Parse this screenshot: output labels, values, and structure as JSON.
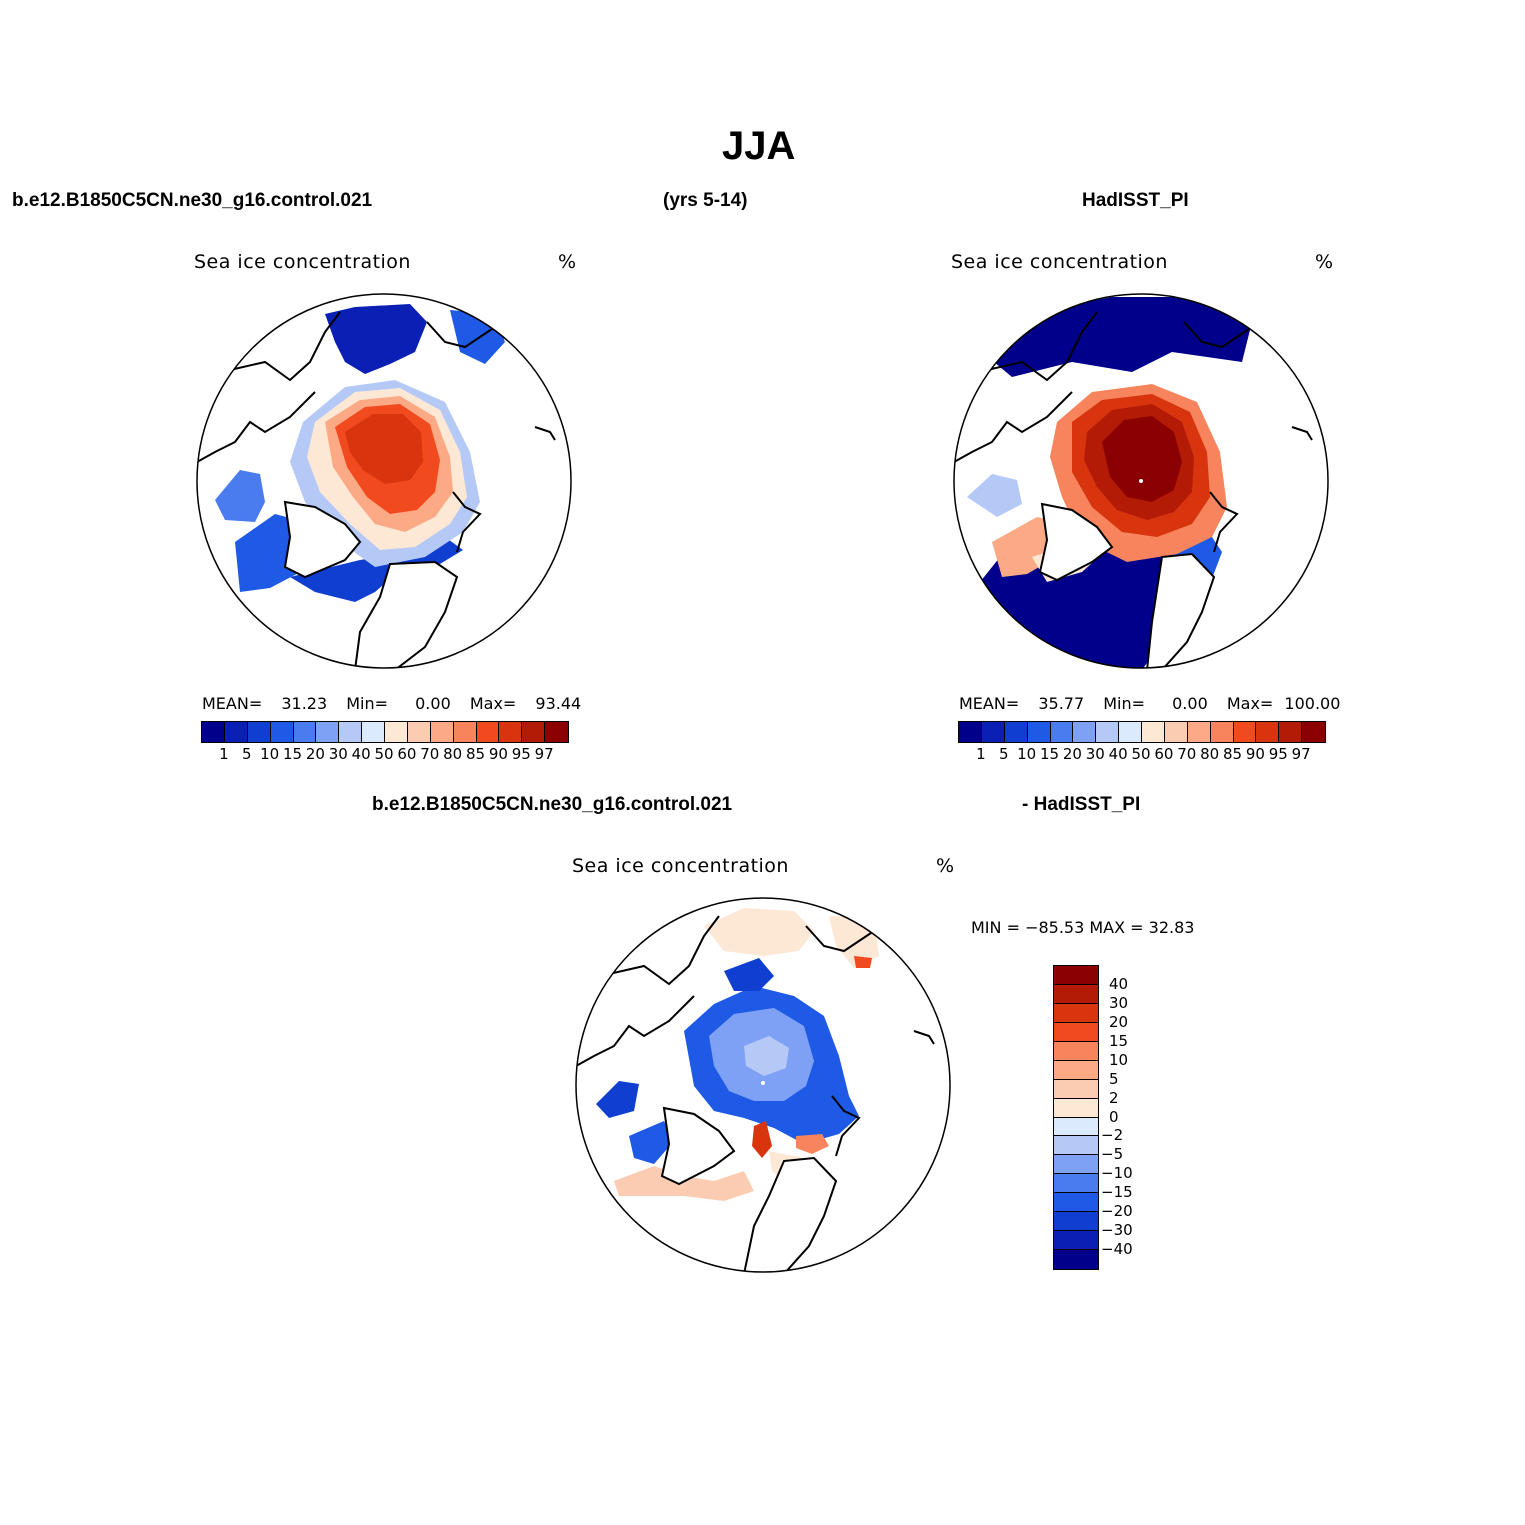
{
  "title": "JJA",
  "header": {
    "case": "b.e12.B1850C5CN.ne30_g16.control.021",
    "years": "(yrs 5-14)",
    "obs": "HadISST_PI",
    "diff_case": "b.e12.B1850C5CN.ne30_g16.control.021",
    "diff_obs": "- HadISST_PI"
  },
  "panels": {
    "model": {
      "title": "Sea ice concentration",
      "units": "%",
      "mean_label": "MEAN=",
      "mean": "31.23",
      "min_label": "Min=",
      "min": "0.00",
      "max_label": "Max=",
      "max": "93.44"
    },
    "obs": {
      "title": "Sea ice concentration",
      "units": "%",
      "mean_label": "MEAN=",
      "mean": "35.77",
      "min_label": "Min=",
      "min": "0.00",
      "max_label": "Max=",
      "max": "100.00"
    },
    "diff": {
      "title": "Sea ice concentration",
      "units": "%",
      "stats": "MIN = −85.53 MAX =   32.83"
    }
  },
  "colorbar_abs": {
    "labels": [
      "1",
      "5",
      "10",
      "15",
      "20",
      "30",
      "40",
      "50",
      "60",
      "70",
      "80",
      "85",
      "90",
      "95",
      "97"
    ],
    "colors": [
      "#00008b",
      "#0a1fb3",
      "#0f3ed1",
      "#1e5ae6",
      "#4a7cf0",
      "#7fa1f5",
      "#b5c9f7",
      "#dceafd",
      "#fde8d6",
      "#fcccb2",
      "#fbaa85",
      "#f7845c",
      "#f04a1e",
      "#d8340e",
      "#b41b07",
      "#8b0000"
    ]
  },
  "colorbar_diff": {
    "labels": [
      "40",
      "30",
      "20",
      "15",
      "10",
      "5",
      "2",
      "0",
      "−2",
      "−5",
      "−10",
      "−15",
      "−20",
      "−30",
      "−40"
    ],
    "colors": [
      "#8b0000",
      "#b41b07",
      "#d8340e",
      "#f04a1e",
      "#f7845c",
      "#fbaa85",
      "#fcccb2",
      "#fde8d6",
      "#dceafd",
      "#b5c9f7",
      "#7fa1f5",
      "#4a7cf0",
      "#1e5ae6",
      "#0f3ed1",
      "#0a1fb3",
      "#00008b"
    ]
  }
}
